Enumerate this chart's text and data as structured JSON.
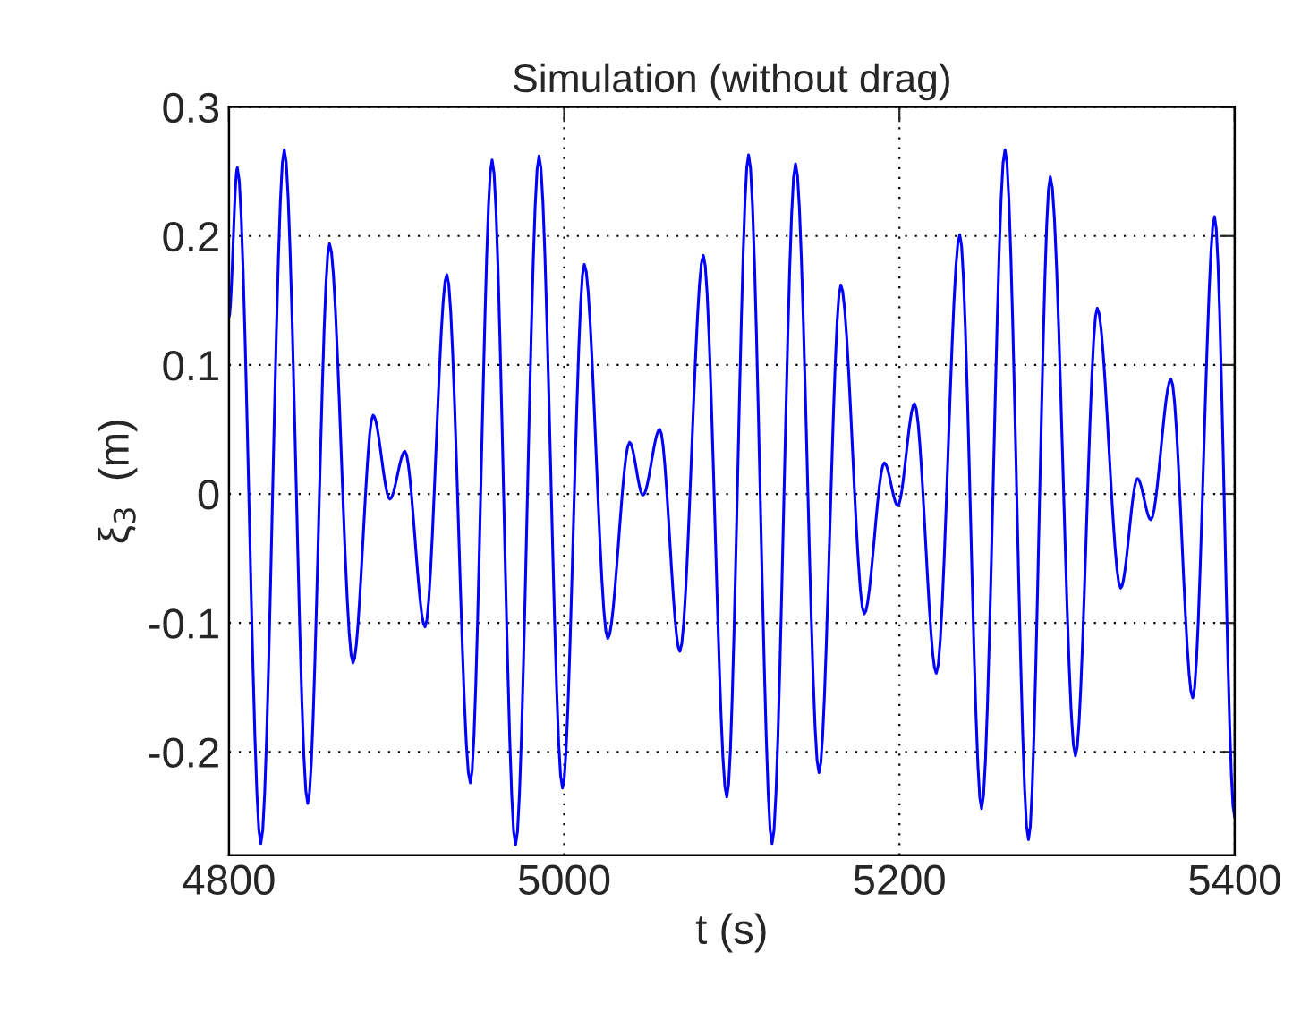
{
  "chart_data": {
    "type": "line",
    "title": "Simulation (without drag)",
    "xlabel": "t (s)",
    "ylabel": "ξ$_{3}$  (m)",
    "series": [
      {
        "color": "#0000ff",
        "x": [
          4800,
          4805,
          4819,
          4833,
          4847,
          4860,
          4874,
          4886,
          4896,
          4905,
          4917,
          4930,
          4944,
          4957,
          4971,
          4985,
          4999,
          5012,
          5026,
          5039,
          5047,
          5057,
          5069,
          5083,
          5097,
          5110,
          5124,
          5138,
          5152,
          5165,
          5179,
          5191,
          5199,
          5209,
          5222,
          5236,
          5249,
          5263,
          5277,
          5290,
          5305,
          5318,
          5332,
          5342,
          5350,
          5362,
          5375,
          5388,
          5400
        ],
        "values": [
          0.137,
          0.253,
          -0.271,
          0.267,
          -0.24,
          0.194,
          -0.131,
          0.061,
          -0.004,
          0.033,
          -0.103,
          0.17,
          -0.224,
          0.259,
          -0.272,
          0.262,
          -0.228,
          0.178,
          -0.112,
          0.04,
          -0.001,
          0.05,
          -0.122,
          0.185,
          -0.235,
          0.263,
          -0.271,
          0.256,
          -0.216,
          0.162,
          -0.093,
          0.024,
          -0.009,
          0.07,
          -0.139,
          0.201,
          -0.244,
          0.267,
          -0.268,
          0.246,
          -0.203,
          0.144,
          -0.073,
          0.012,
          -0.02,
          0.089,
          -0.158,
          0.215,
          -0.251
        ]
      }
    ],
    "xlim": [
      4800,
      5400
    ],
    "xticks": [
      4800,
      5000,
      5200,
      5400
    ],
    "ylim": [
      -0.28,
      0.3
    ],
    "yticks": [
      -0.2,
      -0.1,
      0,
      0.1,
      0.2,
      0.3
    ],
    "grid": true
  }
}
